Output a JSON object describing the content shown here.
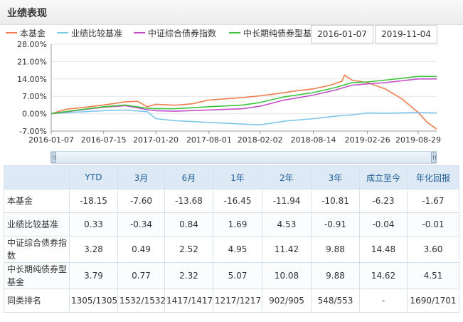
{
  "header": {
    "title": "业绩表现"
  },
  "legend": [
    {
      "label": "本基金",
      "color": "#f07d4f"
    },
    {
      "label": "业绩比较基准",
      "color": "#7ec8ea"
    },
    {
      "label": "中证综合债券指数",
      "color": "#c44fc9"
    },
    {
      "label": "中长期纯债券型基",
      "color": "#3dc43d"
    }
  ],
  "date_range": {
    "start": "2016-01-07",
    "end": "2019-11-04"
  },
  "chart_data": {
    "type": "line",
    "xlabels": [
      "2016-01-07",
      "2016-07-15",
      "2017-01-20",
      "2017-08-01",
      "2018-02-02",
      "2018-08-14",
      "2019-02-26",
      "2019-08-29"
    ],
    "x_range": [
      "2016-01-07",
      "2019-11-04"
    ],
    "y_ticks": [
      "28.00%",
      "21.00%",
      "14.00%",
      "7.00%",
      "0.00%",
      "-7.00%"
    ],
    "ylim": [
      -7,
      28
    ],
    "series": [
      {
        "name": "本基金",
        "color": "#f07d4f",
        "x": [
          "2016-01-07",
          "2016-03-01",
          "2016-05-01",
          "2016-07-15",
          "2016-10-01",
          "2016-11-15",
          "2016-12-20",
          "2017-01-20",
          "2017-04-01",
          "2017-06-01",
          "2017-08-01",
          "2017-10-01",
          "2017-12-01",
          "2018-02-02",
          "2018-04-01",
          "2018-06-01",
          "2018-08-14",
          "2018-10-15",
          "2018-11-25",
          "2018-12-05",
          "2019-01-01",
          "2019-02-26",
          "2019-05-01",
          "2019-07-01",
          "2019-08-29",
          "2019-10-01",
          "2019-11-04"
        ],
        "values": [
          0,
          1.8,
          2.5,
          3.5,
          4.8,
          5.0,
          2.8,
          3.8,
          3.4,
          4.0,
          5.5,
          6.0,
          6.5,
          7.2,
          8.0,
          9.0,
          10.0,
          11.5,
          13.0,
          15.5,
          13.5,
          12.5,
          10.0,
          6.0,
          0.5,
          -3.5,
          -6.2
        ]
      },
      {
        "name": "业绩比较基准",
        "color": "#7ec8ea",
        "x": [
          "2016-01-07",
          "2016-04-01",
          "2016-07-15",
          "2016-10-01",
          "2016-12-20",
          "2017-01-20",
          "2017-04-01",
          "2017-08-01",
          "2017-12-01",
          "2018-02-02",
          "2018-05-01",
          "2018-08-14",
          "2018-11-01",
          "2019-01-01",
          "2019-02-26",
          "2019-05-01",
          "2019-08-29",
          "2019-11-04"
        ],
        "values": [
          0,
          0.6,
          1.2,
          1.5,
          0.8,
          -2.0,
          -2.8,
          -3.5,
          -4.2,
          -4.5,
          -3.0,
          -2.0,
          -1.0,
          -0.5,
          0.3,
          0.2,
          0.5,
          0.3
        ]
      },
      {
        "name": "中证综合债券指数",
        "color": "#c44fc9",
        "x": [
          "2016-01-07",
          "2016-04-01",
          "2016-07-15",
          "2016-10-01",
          "2016-12-20",
          "2017-01-20",
          "2017-04-01",
          "2017-08-01",
          "2017-12-01",
          "2018-02-02",
          "2018-05-01",
          "2018-08-14",
          "2018-11-01",
          "2019-01-01",
          "2019-02-26",
          "2019-05-01",
          "2019-08-29",
          "2019-11-04"
        ],
        "values": [
          0,
          1.2,
          2.6,
          3.2,
          1.6,
          1.2,
          1.0,
          1.5,
          2.0,
          3.0,
          5.5,
          7.5,
          9.5,
          11.5,
          12.0,
          12.5,
          14.0,
          14.0
        ]
      },
      {
        "name": "中长期纯债券型基",
        "color": "#3dc43d",
        "x": [
          "2016-01-07",
          "2016-04-01",
          "2016-07-15",
          "2016-10-01",
          "2016-12-20",
          "2017-01-20",
          "2017-04-01",
          "2017-08-01",
          "2017-12-01",
          "2018-02-02",
          "2018-05-01",
          "2018-08-14",
          "2018-11-01",
          "2019-01-01",
          "2019-02-26",
          "2019-05-01",
          "2019-08-29",
          "2019-11-04"
        ],
        "values": [
          0,
          1.3,
          2.8,
          3.5,
          2.2,
          2.0,
          2.0,
          2.8,
          3.5,
          4.5,
          6.8,
          8.5,
          10.5,
          12.5,
          12.8,
          13.5,
          15.0,
          15.0
        ]
      }
    ]
  },
  "table": {
    "headers": [
      "",
      "YTD",
      "3月",
      "6月",
      "1年",
      "2年",
      "3年",
      "成立至今",
      "年化回报"
    ],
    "rows": [
      {
        "label": "本基金",
        "values": [
          "-18.15",
          "-7.60",
          "-13.68",
          "-16.45",
          "-11.94",
          "-10.81",
          "-6.23",
          "-1.67"
        ]
      },
      {
        "label": "业绩比较基准",
        "values": [
          "0.33",
          "-0.34",
          "0.84",
          "1.69",
          "4.53",
          "-0.91",
          "-0.04",
          "-0.01"
        ]
      },
      {
        "label": "中证综合债券指数",
        "values": [
          "3.28",
          "0.49",
          "2.52",
          "4.95",
          "11.42",
          "9.88",
          "14.48",
          "3.60"
        ]
      },
      {
        "label": "中长期纯债券型基金",
        "values": [
          "3.79",
          "0.77",
          "2.32",
          "5.07",
          "10.08",
          "9.88",
          "14.62",
          "4.51"
        ]
      },
      {
        "label": "同类排名",
        "values": [
          "1305/1305",
          "1532/1532",
          "1417/1417",
          "1217/1217",
          "902/905",
          "548/553",
          "-",
          "1690/1701"
        ]
      }
    ]
  }
}
